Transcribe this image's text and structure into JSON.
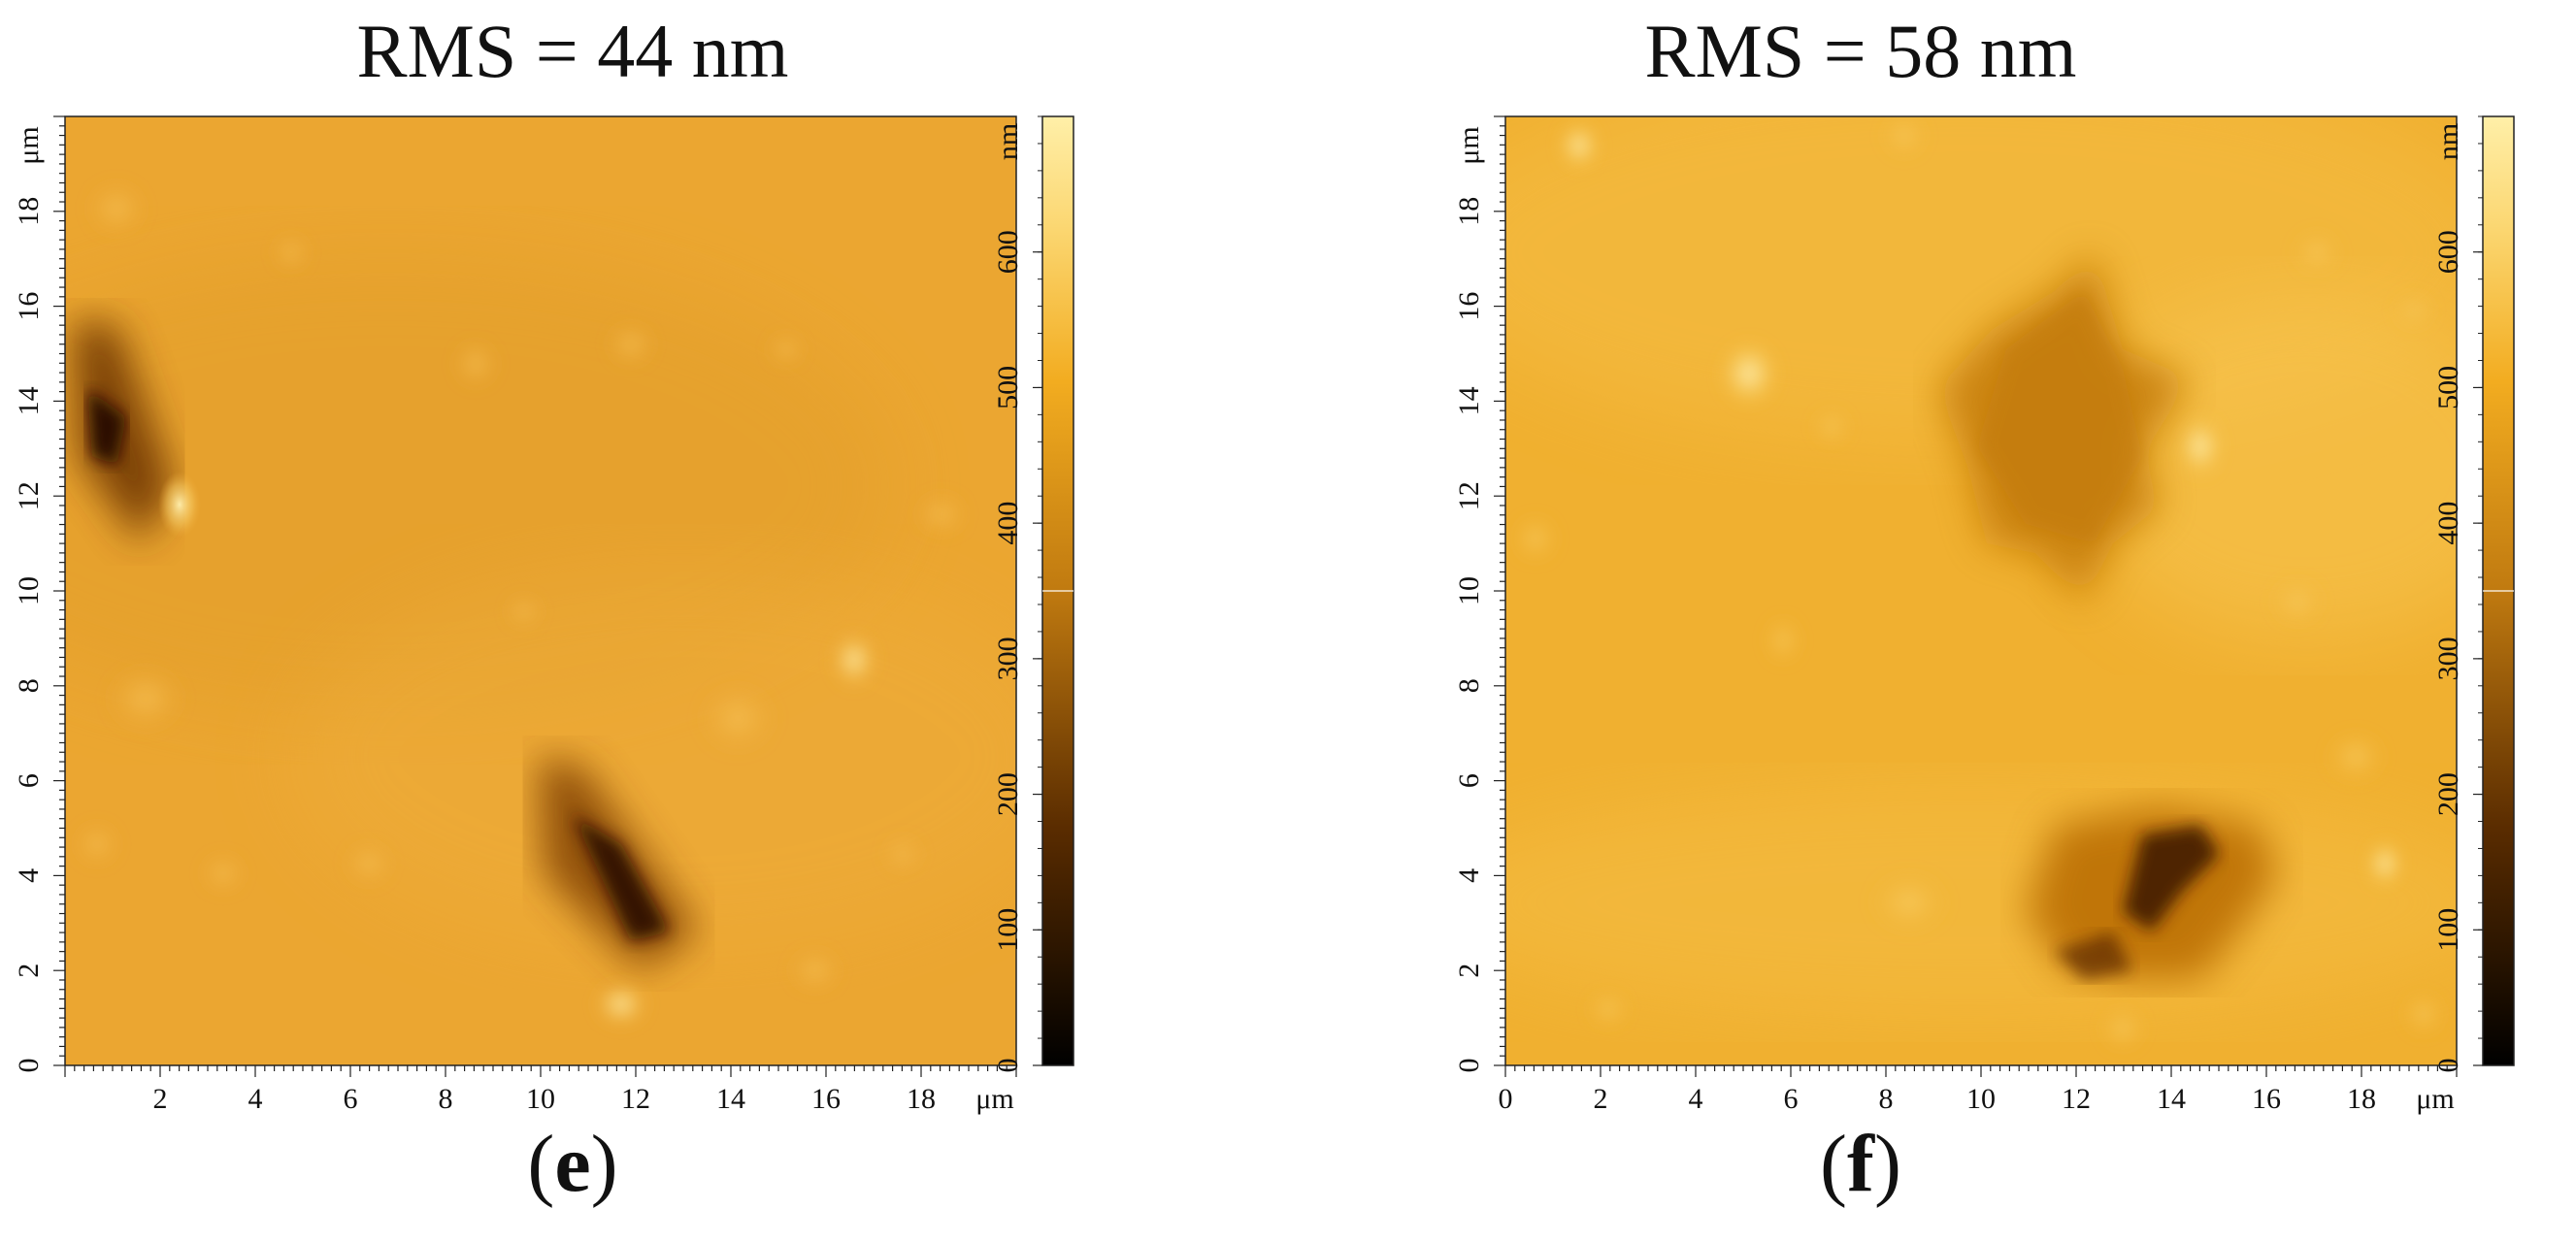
{
  "panels": [
    {
      "id": "e",
      "title": "RMS = 44 nm",
      "label_open": "(",
      "label_letter": "e",
      "label_close": ")",
      "x_ticks": [
        "2",
        "4",
        "6",
        "8",
        "10",
        "12",
        "14",
        "16",
        "18"
      ],
      "x_unit": "μm",
      "y_ticks": [
        "0",
        "2",
        "4",
        "6",
        "8",
        "10",
        "12",
        "14",
        "16",
        "18"
      ],
      "y_unit": "μm",
      "colorbar_ticks": [
        "0",
        "100",
        "200",
        "300",
        "400",
        "500",
        "600"
      ],
      "colorbar_unit": "nm"
    },
    {
      "id": "f",
      "title": "RMS = 58 nm",
      "label_open": "(",
      "label_letter": "f",
      "label_close": ")",
      "x_ticks": [
        "0",
        "2",
        "4",
        "6",
        "8",
        "10",
        "12",
        "14",
        "16",
        "18"
      ],
      "x_unit": "μm",
      "y_ticks": [
        "0",
        "2",
        "4",
        "6",
        "8",
        "10",
        "12",
        "14",
        "16",
        "18"
      ],
      "y_unit": "μm",
      "colorbar_ticks": [
        "0",
        "100",
        "200",
        "300",
        "400",
        "500",
        "600"
      ],
      "colorbar_unit": "nm"
    }
  ],
  "colors": {
    "surface_base": "#e8a22e",
    "surface_light": "#f3bb4a",
    "surface_dark": "#1a0d00",
    "colorbar_top": "#ffeea0",
    "colorbar_bottom": "#000000"
  }
}
